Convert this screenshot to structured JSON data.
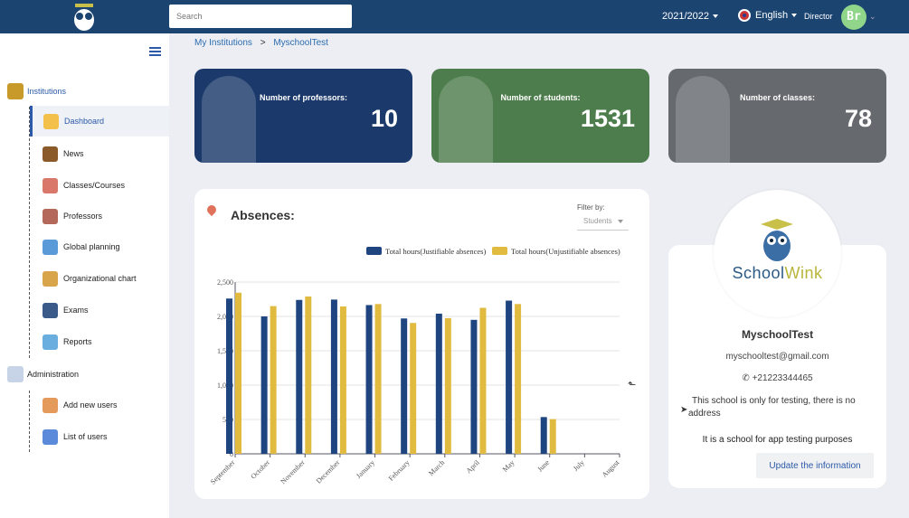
{
  "header": {
    "search_placeholder": "Search",
    "year": "2021/2022",
    "language": "English",
    "role": "Director",
    "avatar_initials": "Br"
  },
  "sidebar": {
    "sections": [
      {
        "label": "Institutions",
        "items": [
          {
            "label": "Dashboard",
            "active": true
          },
          {
            "label": "News"
          },
          {
            "label": "Classes/Courses"
          },
          {
            "label": "Professors"
          },
          {
            "label": "Global planning"
          },
          {
            "label": "Organizational chart"
          },
          {
            "label": "Exams"
          },
          {
            "label": "Reports"
          }
        ]
      },
      {
        "label": "Administration",
        "items": [
          {
            "label": "Add new users"
          },
          {
            "label": "List of users"
          }
        ]
      }
    ]
  },
  "breadcrumb": {
    "root": "My Institutions",
    "sep": ">",
    "current": "MyschoolTest"
  },
  "stats": [
    {
      "label": "Number of professors:",
      "value": "10",
      "color": "#1b3a6b"
    },
    {
      "label": "Number of students:",
      "value": "1531",
      "color": "#4e7d4d"
    },
    {
      "label": "Number of classes:",
      "value": "78",
      "color": "#666a6e"
    }
  ],
  "absences": {
    "title": "Absences:",
    "filter_label": "Filter by:",
    "filter_value": "Students"
  },
  "chart_data": {
    "type": "bar",
    "categories": [
      "September",
      "October",
      "November",
      "December",
      "January",
      "February",
      "March",
      "April",
      "May",
      "June",
      "July",
      "August"
    ],
    "series": [
      {
        "name": "Total hours(Justifiable absences)",
        "color": "#1e4580",
        "values": [
          2260,
          2000,
          2240,
          2245,
          2165,
          1970,
          2040,
          1950,
          2230,
          535,
          0,
          0
        ]
      },
      {
        "name": "Total hours(Unjustifiable absences)",
        "color": "#e0bb40",
        "values": [
          2345,
          2150,
          2290,
          2145,
          2180,
          1905,
          1975,
          2125,
          2180,
          505,
          0,
          0
        ]
      }
    ],
    "yticks": [
      "0",
      "500",
      "1,000",
      "1,500",
      "2,000",
      "2,500"
    ],
    "ylim": [
      0,
      2500
    ],
    "legend": "top-right",
    "grid": true
  },
  "profile": {
    "logo_text_1": "School",
    "logo_text_2": "Wink",
    "name": "MyschoolTest",
    "email": "myschooltest@gmail.com",
    "phone": "+21223344465",
    "address": "This school is only for testing, there is no address",
    "description": "It is a school for app testing purposes",
    "update_label": "Update the information"
  }
}
